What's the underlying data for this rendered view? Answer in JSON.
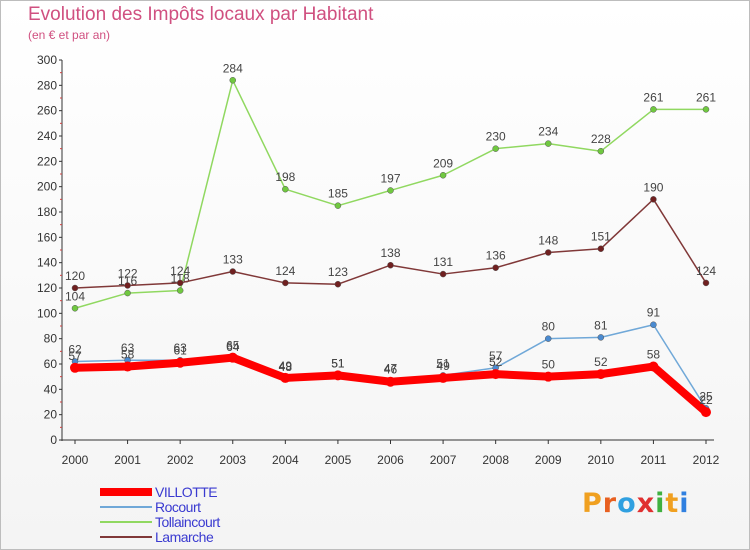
{
  "header": {
    "title": "Evolution des Impôts locaux par Habitant",
    "subtitle": "(en € et par an)"
  },
  "logo": {
    "letters": [
      "P",
      "r",
      "o",
      "x",
      "i",
      "t",
      "i"
    ],
    "colors": [
      "#f0a020",
      "#e86020",
      "#30a0e0",
      "#e03030",
      "#40b040",
      "#f0a020",
      "#3080e0"
    ]
  },
  "chart_data": {
    "type": "line",
    "x": [
      "2000",
      "2001",
      "2002",
      "2003",
      "2004",
      "2005",
      "2006",
      "2007",
      "2008",
      "2009",
      "2010",
      "2011",
      "2012"
    ],
    "ylim": [
      0,
      300
    ],
    "yticks": [
      0,
      20,
      40,
      60,
      80,
      100,
      120,
      140,
      160,
      180,
      200,
      220,
      240,
      260,
      280,
      300
    ],
    "grid": false,
    "legend_position": "bottom-left",
    "series": [
      {
        "name": "Tollaincourt",
        "color": "#90d860",
        "marker": "#70c840",
        "width": 1.5,
        "values": [
          104,
          116,
          118,
          284,
          198,
          185,
          197,
          209,
          230,
          234,
          228,
          261,
          261
        ]
      },
      {
        "name": "Lamarche",
        "color": "#803838",
        "marker": "#702020",
        "width": 1.5,
        "values": [
          120,
          122,
          124,
          133,
          124,
          123,
          138,
          131,
          136,
          148,
          151,
          190,
          124
        ]
      },
      {
        "name": "Rocourt",
        "color": "#70a8d8",
        "marker": "#4a8ad0",
        "width": 1.5,
        "values": [
          62,
          63,
          63,
          64,
          48,
          51,
          47,
          51,
          57,
          80,
          81,
          91,
          25
        ]
      },
      {
        "name": "VILLOTTE",
        "color": "#ff0000",
        "marker": "#ff0000",
        "width": 8,
        "values": [
          57,
          58,
          61,
          65,
          49,
          51,
          46,
          49,
          52,
          50,
          52,
          58,
          22
        ]
      }
    ],
    "legend_order": [
      "VILLOTTE",
      "Rocourt",
      "Tollaincourt",
      "Lamarche"
    ]
  }
}
